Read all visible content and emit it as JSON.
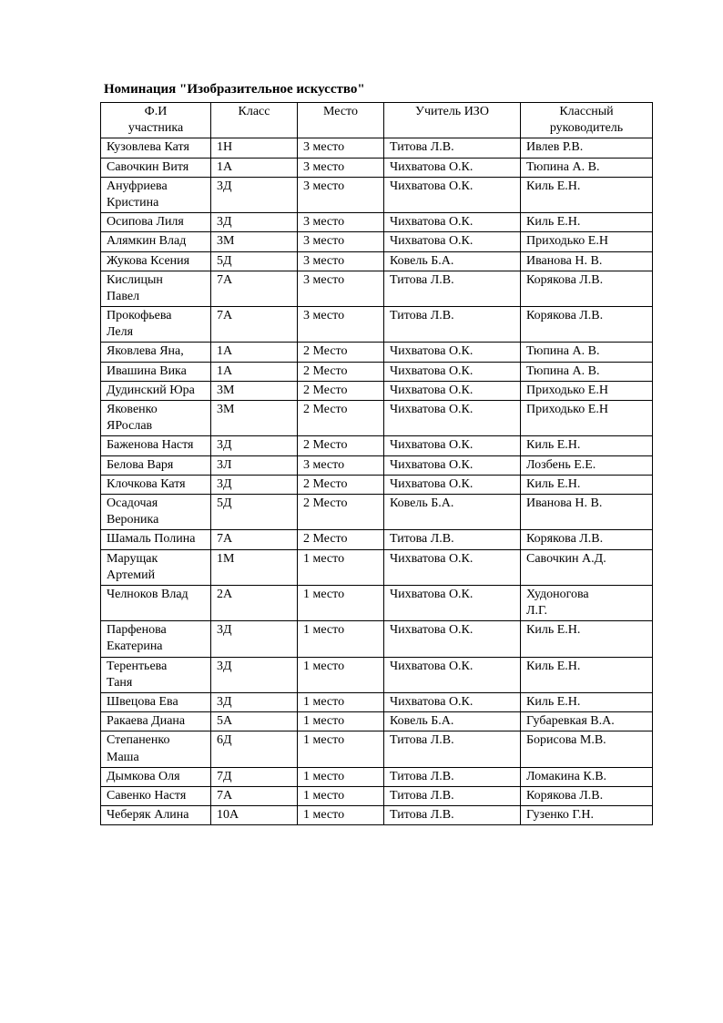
{
  "page": {
    "title": "Номинация \"Изобразительное искусство\""
  },
  "table": {
    "headers": [
      "Ф.И\nучастника",
      "Класс",
      "Место",
      "Учитель ИЗО",
      "Классный\nруководитель"
    ],
    "rows": [
      [
        "Кузовлева Катя",
        "1Н",
        "3 место",
        "Титова Л.В.",
        "Ивлев Р.В."
      ],
      [
        "Савочкин Витя",
        "1А",
        "3 место",
        "Чихватова О.К.",
        "Тюпина А. В."
      ],
      [
        "Ануфриева\nКристина",
        "3Д",
        "3 место",
        "Чихватова О.К.",
        "Киль Е.Н."
      ],
      [
        "Осипова Лиля",
        "3Д",
        "3 место",
        "Чихватова О.К.",
        "Киль Е.Н."
      ],
      [
        "Алямкин Влад",
        "3М",
        "3 место",
        "Чихватова О.К.",
        "Приходько Е.Н"
      ],
      [
        "Жукова Ксения",
        "5Д",
        "3 место",
        "Ковель Б.А.",
        "Иванова Н. В."
      ],
      [
        "Кислицын\nПавел",
        "7А",
        "3 место",
        "Титова Л.В.",
        "Корякова Л.В."
      ],
      [
        "Прокофьева\nЛеля",
        "7А",
        "3 место",
        "Титова Л.В.",
        "Корякова Л.В."
      ],
      [
        "Яковлева Яна,",
        "1А",
        "2 Место",
        "Чихватова О.К.",
        "Тюпина А. В."
      ],
      [
        "Ивашина Вика",
        "1А",
        "2 Место",
        "Чихватова О.К.",
        "Тюпина А. В."
      ],
      [
        "Дудинский Юра",
        "3М",
        "2 Место",
        "Чихватова О.К.",
        "Приходько Е.Н"
      ],
      [
        "Яковенко\nЯРослав",
        "3М",
        "2 Место",
        "Чихватова О.К.",
        "Приходько Е.Н"
      ],
      [
        "Баженова Настя",
        "3Д",
        "2 Место",
        "Чихватова О.К.",
        "Киль Е.Н."
      ],
      [
        "Белова Варя",
        "3Л",
        "3 место",
        "Чихватова О.К.",
        "Лозбень Е.Е."
      ],
      [
        "Клочкова Катя",
        "3Д",
        "2 Место",
        "Чихватова О.К.",
        "Киль Е.Н."
      ],
      [
        "Осадочая\nВероника",
        "5Д",
        "2 Место",
        "Ковель Б.А.",
        "Иванова Н. В."
      ],
      [
        "Шамаль Полина",
        "7А",
        "2 Место",
        "Титова Л.В.",
        "Корякова Л.В."
      ],
      [
        "Марущак\nАртемий",
        "1М",
        "1 место",
        "Чихватова О.К.",
        "Савочкин А.Д."
      ],
      [
        "Челноков Влад",
        "2А",
        "1 место",
        "Чихватова О.К.",
        "Худоногова\nЛ.Г."
      ],
      [
        "Парфенова\nЕкатерина",
        "3Д",
        "1 место",
        "Чихватова О.К.",
        "Киль Е.Н."
      ],
      [
        "Терентьева\nТаня",
        "3Д",
        "1 место",
        "Чихватова О.К.",
        "Киль Е.Н."
      ],
      [
        "Швецова Ева",
        "3Д",
        "1 место",
        "Чихватова О.К.",
        "Киль Е.Н."
      ],
      [
        "Ракаева Диана",
        "5А",
        "1 место",
        "Ковель Б.А.",
        "Губаревкая В.А."
      ],
      [
        "Степаненко\nМаша",
        "6Д",
        "1 место",
        "Титова Л.В.",
        "Борисова М.В."
      ],
      [
        "Дымкова Оля",
        "7Д",
        "1 место",
        "Титова Л.В.",
        "Ломакина К.В."
      ],
      [
        "Савенко Настя",
        "7А",
        "1 место",
        "Титова Л.В.",
        "Корякова Л.В."
      ],
      [
        "Чеберяк Алина",
        "10А",
        "1 место",
        "Титова Л.В.",
        "Гузенко Г.Н."
      ]
    ]
  }
}
